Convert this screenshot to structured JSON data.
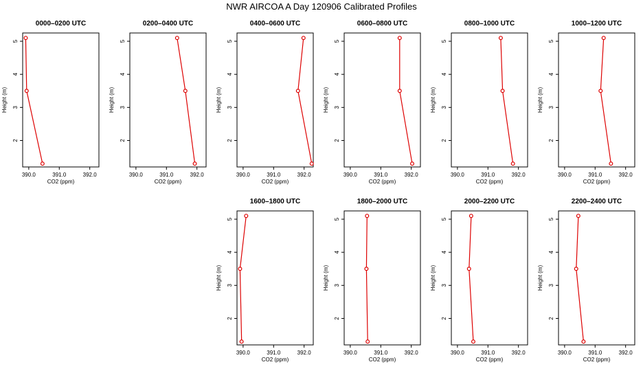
{
  "title": "NWR AIRCOA A  Day 120906  Calibrated Profiles",
  "colors": {
    "series": "#dd0000",
    "axis": "#000000",
    "background": "#ffffff"
  },
  "chart_data": [
    {
      "type": "line",
      "title": "0000–0200 UTC",
      "xlabel": "CO2 (ppm)",
      "ylabel": "Height (m)",
      "xlim": [
        389.8,
        392.3
      ],
      "ylim": [
        1.2,
        5.25
      ],
      "xticks": [
        "390.0",
        "391.0",
        "392.0"
      ],
      "yticks": [
        "2",
        "3",
        "4",
        "5"
      ],
      "x": [
        389.9,
        389.93,
        390.45
      ],
      "y": [
        5.1,
        3.5,
        1.3
      ],
      "grid": false
    },
    {
      "type": "line",
      "title": "0200–0400 UTC",
      "xlabel": "CO2 (ppm)",
      "ylabel": "Height (m)",
      "xlim": [
        389.8,
        392.3
      ],
      "ylim": [
        1.2,
        5.25
      ],
      "xticks": [
        "390.0",
        "391.0",
        "392.0"
      ],
      "yticks": [
        "2",
        "3",
        "4",
        "5"
      ],
      "x": [
        391.35,
        391.62,
        391.93
      ],
      "y": [
        5.1,
        3.5,
        1.3
      ],
      "grid": false
    },
    {
      "type": "line",
      "title": "0400–0600 UTC",
      "xlabel": "CO2 (ppm)",
      "ylabel": "Height (m)",
      "xlim": [
        389.8,
        392.3
      ],
      "ylim": [
        1.2,
        5.25
      ],
      "xticks": [
        "390.0",
        "391.0",
        "392.0"
      ],
      "yticks": [
        "2",
        "3",
        "4",
        "5"
      ],
      "x": [
        391.98,
        391.8,
        392.25
      ],
      "y": [
        5.1,
        3.5,
        1.3
      ],
      "grid": false
    },
    {
      "type": "line",
      "title": "0600–0800 UTC",
      "xlabel": "CO2 (ppm)",
      "ylabel": "Height (m)",
      "xlim": [
        389.8,
        392.3
      ],
      "ylim": [
        1.2,
        5.25
      ],
      "xticks": [
        "390.0",
        "391.0",
        "392.0"
      ],
      "yticks": [
        "2",
        "3",
        "4",
        "5"
      ],
      "x": [
        391.62,
        391.62,
        392.03
      ],
      "y": [
        5.1,
        3.5,
        1.3
      ],
      "grid": false
    },
    {
      "type": "line",
      "title": "0800–1000 UTC",
      "xlabel": "CO2 (ppm)",
      "ylabel": "Height (m)",
      "xlim": [
        389.8,
        392.3
      ],
      "ylim": [
        1.2,
        5.25
      ],
      "xticks": [
        "390.0",
        "391.0",
        "392.0"
      ],
      "yticks": [
        "2",
        "3",
        "4",
        "5"
      ],
      "x": [
        391.42,
        391.48,
        391.82
      ],
      "y": [
        5.1,
        3.5,
        1.3
      ],
      "grid": false
    },
    {
      "type": "line",
      "title": "1000–1200 UTC",
      "xlabel": "CO2 (ppm)",
      "ylabel": "Height (m)",
      "xlim": [
        389.8,
        392.3
      ],
      "ylim": [
        1.2,
        5.25
      ],
      "xticks": [
        "390.0",
        "391.0",
        "392.0"
      ],
      "yticks": [
        "2",
        "3",
        "4",
        "5"
      ],
      "x": [
        391.28,
        391.18,
        391.52
      ],
      "y": [
        5.1,
        3.5,
        1.3
      ],
      "grid": false
    },
    {
      "type": "line",
      "title": "1600–1800 UTC",
      "xlabel": "CO2 (ppm)",
      "ylabel": "Height (m)",
      "xlim": [
        389.8,
        392.3
      ],
      "ylim": [
        1.2,
        5.25
      ],
      "xticks": [
        "390.0",
        "391.0",
        "392.0"
      ],
      "yticks": [
        "2",
        "3",
        "4",
        "5"
      ],
      "x": [
        390.1,
        389.9,
        389.95
      ],
      "y": [
        5.1,
        3.5,
        1.3
      ],
      "grid": false
    },
    {
      "type": "line",
      "title": "1800–2000 UTC",
      "xlabel": "CO2 (ppm)",
      "ylabel": "Height (m)",
      "xlim": [
        389.8,
        392.3
      ],
      "ylim": [
        1.2,
        5.25
      ],
      "xticks": [
        "390.0",
        "391.0",
        "392.0"
      ],
      "yticks": [
        "2",
        "3",
        "4",
        "5"
      ],
      "x": [
        390.55,
        390.53,
        390.57
      ],
      "y": [
        5.1,
        3.5,
        1.3
      ],
      "grid": false
    },
    {
      "type": "line",
      "title": "2000–2200 UTC",
      "xlabel": "CO2 (ppm)",
      "ylabel": "Height (m)",
      "xlim": [
        389.8,
        392.3
      ],
      "ylim": [
        1.2,
        5.25
      ],
      "xticks": [
        "390.0",
        "391.0",
        "392.0"
      ],
      "yticks": [
        "2",
        "3",
        "4",
        "5"
      ],
      "x": [
        390.45,
        390.38,
        390.52
      ],
      "y": [
        5.1,
        3.5,
        1.3
      ],
      "grid": false
    },
    {
      "type": "line",
      "title": "2200–2400 UTC",
      "xlabel": "CO2 (ppm)",
      "ylabel": "Height (m)",
      "xlim": [
        389.8,
        392.3
      ],
      "ylim": [
        1.2,
        5.25
      ],
      "xticks": [
        "390.0",
        "391.0",
        "392.0"
      ],
      "yticks": [
        "2",
        "3",
        "4",
        "5"
      ],
      "x": [
        390.45,
        390.38,
        390.62
      ],
      "y": [
        5.1,
        3.5,
        1.3
      ],
      "grid": false
    }
  ]
}
